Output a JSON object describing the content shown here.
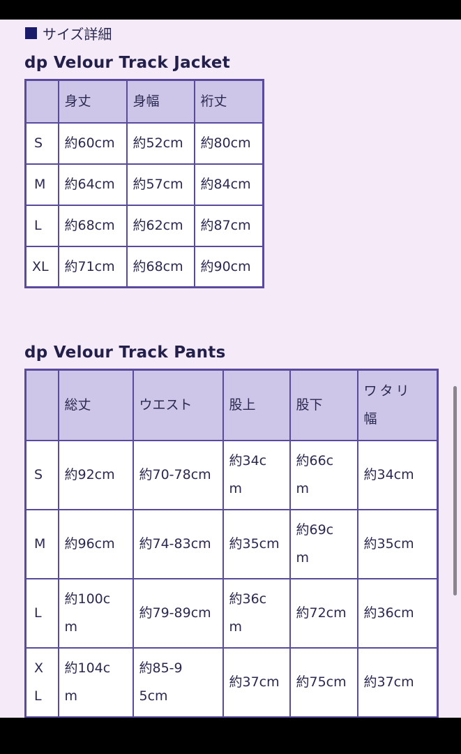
{
  "section_label": "サイズ詳細",
  "jacket": {
    "title": "dp Velour Track Jacket",
    "headers": [
      "",
      "身丈",
      "身幅",
      "裄丈"
    ],
    "rows": [
      [
        "S",
        "約60cm",
        "約52cm",
        "約80cm"
      ],
      [
        "M",
        "約64cm",
        "約57cm",
        "約84cm"
      ],
      [
        "L",
        "約68cm",
        "約62cm",
        "約87cm"
      ],
      [
        "XL",
        "約71cm",
        "約68cm",
        "約90cm"
      ]
    ]
  },
  "pants": {
    "title": "dp Velour Track Pants",
    "headers": [
      "",
      "総丈",
      "ウエスト",
      "股上",
      "股下",
      "ワタリ幅"
    ],
    "rows": [
      [
        "S",
        "約92cm",
        "約70-78cm",
        "約34cm",
        "約66cm",
        "約34cm"
      ],
      [
        "M",
        "約96cm",
        "約74-83cm",
        "約35cm",
        "約69cm",
        "約35cm"
      ],
      [
        "L",
        "約100cm",
        "約79-89cm",
        "約36cm",
        "約72cm",
        "約36cm"
      ],
      [
        "XL",
        "約104cm",
        "約85-95cm",
        "約37cm",
        "約75cm",
        "約37cm"
      ]
    ]
  },
  "colors": {
    "header_bg": "#cdc6e8",
    "border": "#5a4a9e",
    "page_bg": "#f4eaf8"
  }
}
